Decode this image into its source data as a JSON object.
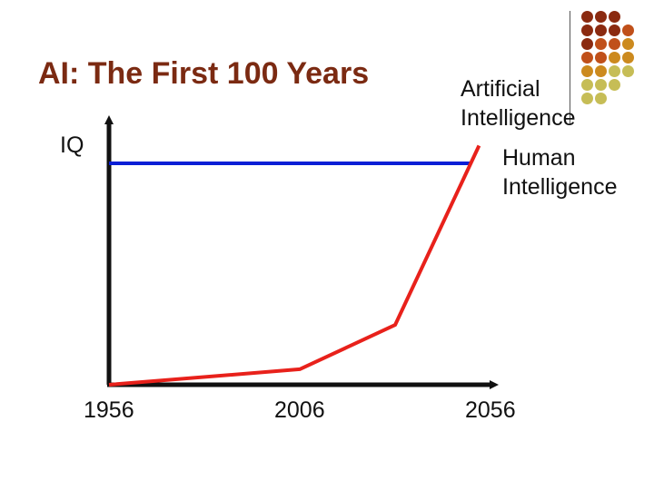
{
  "slide": {
    "title": "AI: The First 100 Years",
    "accent_colors": [
      "#8b2a10",
      "#c0501a",
      "#cc8a1e",
      "#c6bd56"
    ]
  },
  "chart_data": {
    "type": "line",
    "title": "",
    "ylabel": "IQ",
    "xlabel": "",
    "x_ticks": [
      "1956",
      "2006",
      "2056"
    ],
    "xlim": [
      1956,
      2056
    ],
    "series": [
      {
        "name": "Human Intelligence",
        "color": "#0a1ed6",
        "points": [
          [
            1956,
            100
          ],
          [
            2051,
            100
          ]
        ]
      },
      {
        "name": "Artificial Intelligence",
        "color": "#e8211b",
        "points": [
          [
            1956,
            0
          ],
          [
            2006,
            7
          ],
          [
            2031,
            27
          ],
          [
            2053,
            108
          ]
        ]
      }
    ],
    "annotations": {
      "ai_label": "Artificial\nIntelligence",
      "hi_label": "Human\nIntelligence"
    },
    "grid": false,
    "legend": "none"
  }
}
